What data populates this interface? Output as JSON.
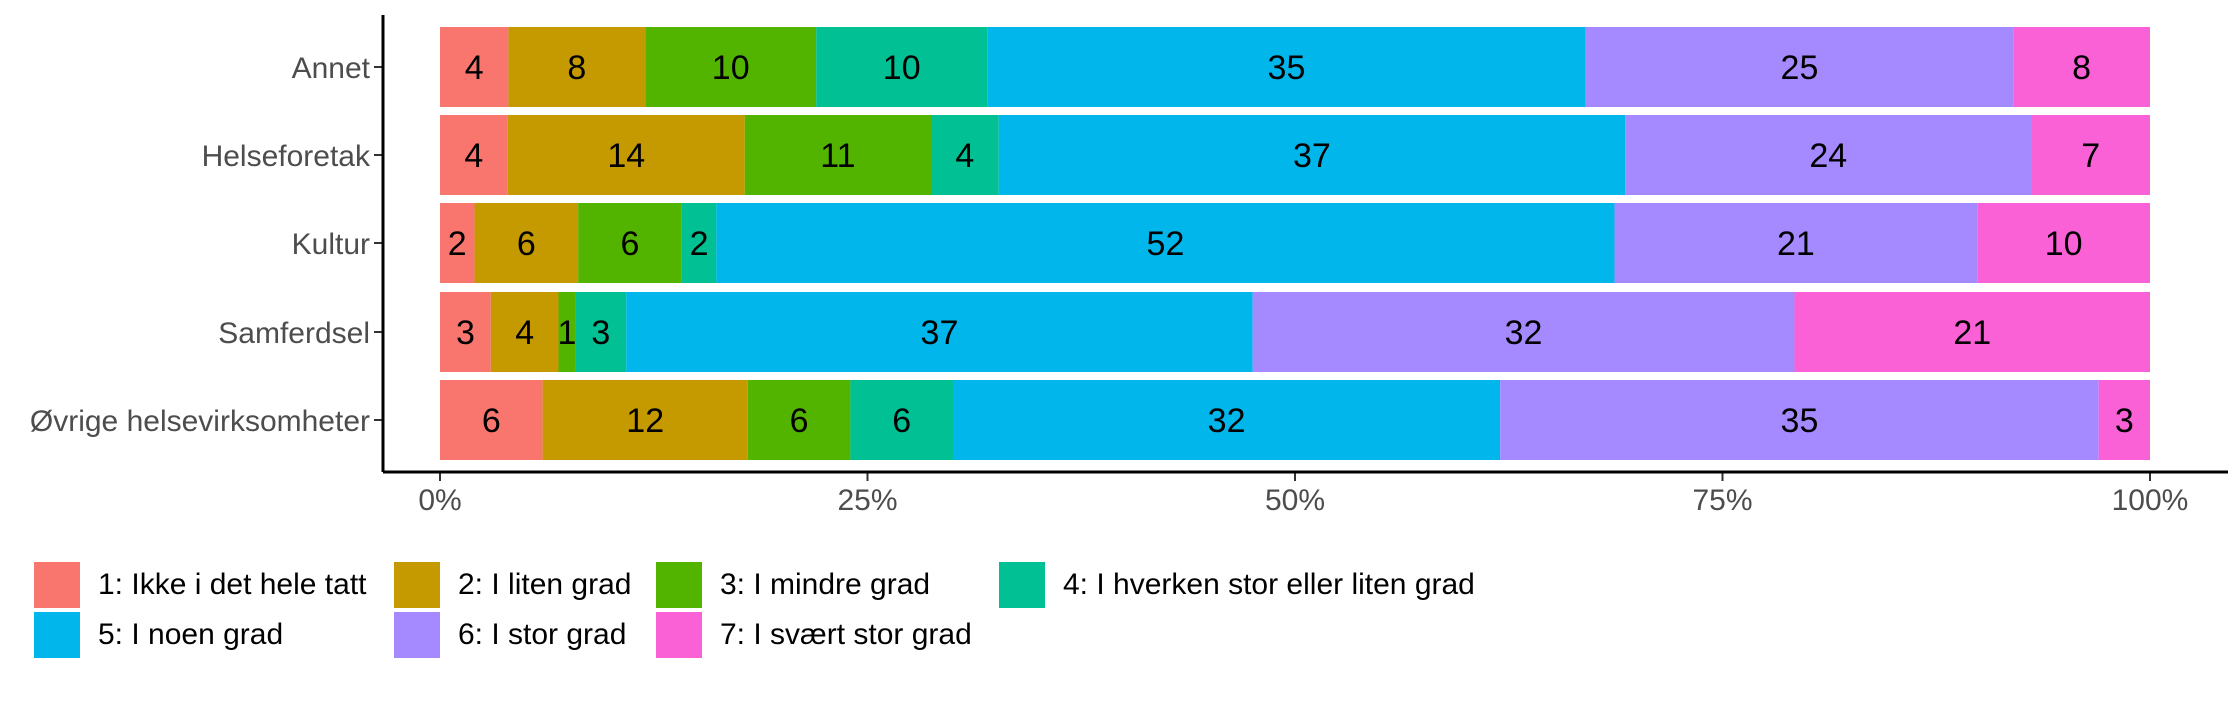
{
  "chart_data": {
    "type": "bar",
    "orientation": "horizontal",
    "stacked": true,
    "normalized": true,
    "categories": [
      "Annet",
      "Helseforetak",
      "Kultur",
      "Samferdsel",
      "Øvrige helsevirksomheter"
    ],
    "series": [
      {
        "name": "1: Ikke i det hele tatt",
        "color": "#F8766D",
        "values": [
          4,
          4,
          2,
          3,
          6
        ]
      },
      {
        "name": "2: I liten grad",
        "color": "#C49A00",
        "values": [
          8,
          14,
          6,
          4,
          12
        ]
      },
      {
        "name": "3: I mindre grad",
        "color": "#53B400",
        "values": [
          10,
          11,
          6,
          1,
          6
        ]
      },
      {
        "name": "4: I hverken stor eller liten grad",
        "color": "#00C094",
        "values": [
          10,
          4,
          2,
          3,
          6
        ]
      },
      {
        "name": "5: I noen grad",
        "color": "#00B6EB",
        "values": [
          35,
          37,
          52,
          37,
          32
        ]
      },
      {
        "name": "6: I stor grad",
        "color": "#A58AFF",
        "values": [
          25,
          24,
          21,
          32,
          35
        ]
      },
      {
        "name": "7: I svært stor grad",
        "color": "#FB61D7",
        "values": [
          8,
          7,
          10,
          21,
          3
        ]
      }
    ],
    "x_ticks": [
      "0%",
      "25%",
      "50%",
      "75%",
      "100%"
    ],
    "xlim": [
      0,
      1
    ],
    "grid": false,
    "legend_position": "bottom"
  }
}
